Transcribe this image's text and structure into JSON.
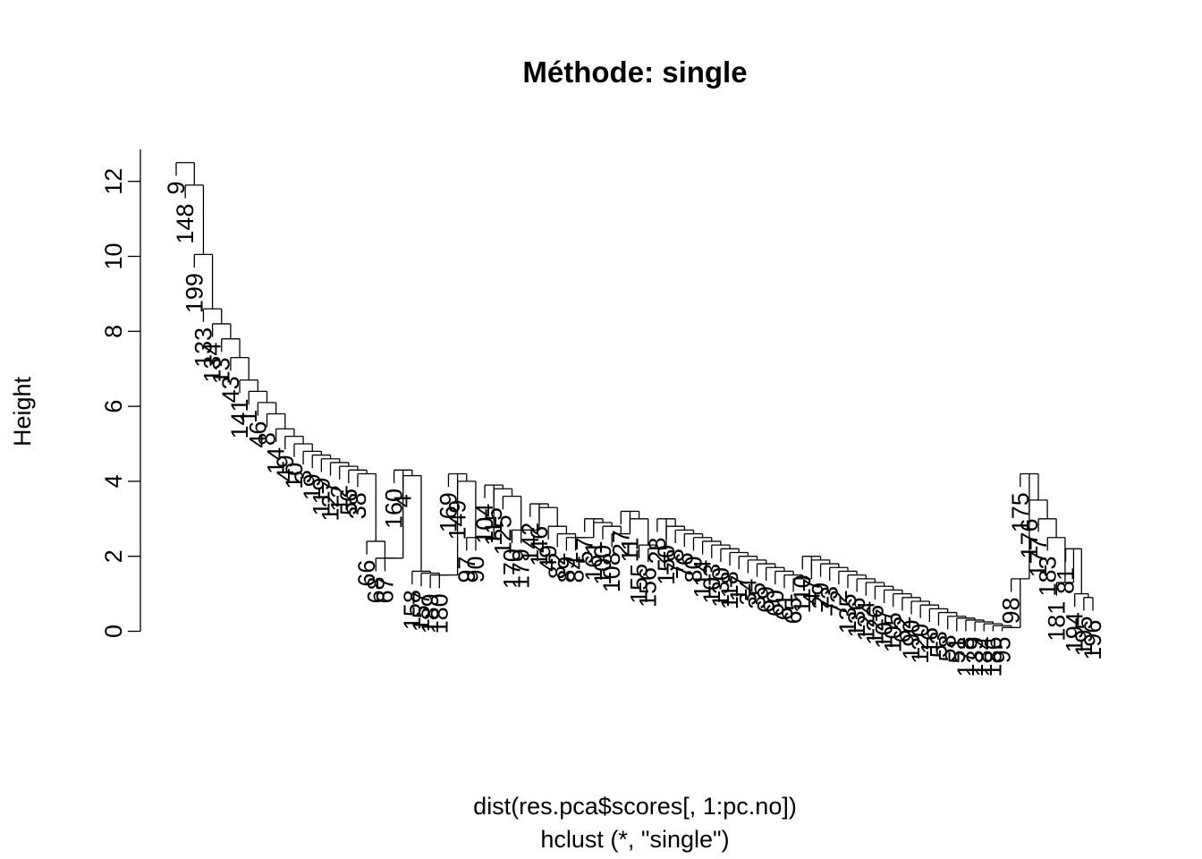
{
  "chart_data": {
    "type": "dendrogram",
    "title": "Méthode: single",
    "ylabel": "Height",
    "xlabel": "dist(res.pca$scores[, 1:pc.no])",
    "sub": "hclust (*, \"single\")",
    "yticks": [
      0,
      2,
      4,
      6,
      8,
      10,
      12
    ],
    "ylim": [
      0,
      12.5
    ],
    "hang": 0.1,
    "leaves": [
      {
        "label": "9",
        "h": 12.5
      },
      {
        "label": "148",
        "h": 11.9
      },
      {
        "label": "199",
        "h": 10.05
      },
      {
        "label": "133",
        "h": 8.6
      },
      {
        "label": "134",
        "h": 8.2
      },
      {
        "label": "13",
        "h": 7.8
      },
      {
        "label": "43",
        "h": 7.3
      },
      {
        "label": "141",
        "h": 6.7
      },
      {
        "label": "1",
        "h": 6.4
      },
      {
        "label": "46",
        "h": 6.1
      },
      {
        "label": "8",
        "h": 5.8
      },
      {
        "label": "14",
        "h": 5.4
      },
      {
        "label": "49",
        "h": 5.2
      },
      {
        "label": "10",
        "h": 5.0
      },
      {
        "label": "3",
        "h": 4.8
      },
      {
        "label": "19",
        "h": 4.7
      },
      {
        "label": "119",
        "h": 4.6
      },
      {
        "label": "127",
        "h": 4.5
      },
      {
        "label": "12",
        "h": 4.4
      },
      {
        "label": "56",
        "h": 4.3
      },
      {
        "label": "38",
        "h": 4.2
      },
      {
        "label": "66",
        "h": 2.4
      },
      {
        "label": "68",
        "h": 1.95
      },
      {
        "label": "67",
        "h": 1.95
      },
      {
        "label": "160",
        "h": 4.3
      },
      {
        "label": "4",
        "h": 4.15
      },
      {
        "label": "158",
        "h": 1.6
      },
      {
        "label": "157",
        "h": 1.55
      },
      {
        "label": "189",
        "h": 1.5
      },
      {
        "label": "180",
        "h": 1.5
      },
      {
        "label": "169",
        "h": 4.2
      },
      {
        "label": "149",
        "h": 4.0
      },
      {
        "label": "97",
        "h": 2.5
      },
      {
        "label": "90",
        "h": 2.5
      },
      {
        "label": "104",
        "h": 3.9
      },
      {
        "label": "115",
        "h": 3.8
      },
      {
        "label": "125",
        "h": 3.6
      },
      {
        "label": "170",
        "h": 2.7
      },
      {
        "label": "179",
        "h": 2.7
      },
      {
        "label": "142",
        "h": 3.4
      },
      {
        "label": "146",
        "h": 3.3
      },
      {
        "label": "49",
        "h": 2.8
      },
      {
        "label": "82",
        "h": 2.6
      },
      {
        "label": "89",
        "h": 2.5
      },
      {
        "label": "84",
        "h": 2.5
      },
      {
        "label": "57",
        "h": 3.0
      },
      {
        "label": "161",
        "h": 2.9
      },
      {
        "label": "100",
        "h": 2.8
      },
      {
        "label": "108",
        "h": 2.6
      },
      {
        "label": "27",
        "h": 3.2
      },
      {
        "label": "11",
        "h": 3.0
      },
      {
        "label": "155",
        "h": 2.3
      },
      {
        "label": "156",
        "h": 2.2
      },
      {
        "label": "28",
        "h": 3.0
      },
      {
        "label": "150",
        "h": 2.8
      },
      {
        "label": "78",
        "h": 2.7
      },
      {
        "label": "76",
        "h": 2.6
      },
      {
        "label": "80",
        "h": 2.5
      },
      {
        "label": "114",
        "h": 2.4
      },
      {
        "label": "103",
        "h": 2.3
      },
      {
        "label": "130",
        "h": 2.2
      },
      {
        "label": "118",
        "h": 2.1
      },
      {
        "label": "17",
        "h": 2.0
      },
      {
        "label": "34",
        "h": 1.9
      },
      {
        "label": "35",
        "h": 1.8
      },
      {
        "label": "69",
        "h": 1.7
      },
      {
        "label": "60",
        "h": 1.6
      },
      {
        "label": "61",
        "h": 1.5
      },
      {
        "label": "65",
        "h": 1.4
      },
      {
        "label": "110",
        "h": 2.0
      },
      {
        "label": "47",
        "h": 1.9
      },
      {
        "label": "29",
        "h": 1.8
      },
      {
        "label": "73",
        "h": 1.7
      },
      {
        "label": "72",
        "h": 1.6
      },
      {
        "label": "135",
        "h": 1.5
      },
      {
        "label": "136",
        "h": 1.4
      },
      {
        "label": "124",
        "h": 1.3
      },
      {
        "label": "126",
        "h": 1.2
      },
      {
        "label": "107",
        "h": 1.1
      },
      {
        "label": "105",
        "h": 1.0
      },
      {
        "label": "62",
        "h": 0.9
      },
      {
        "label": "190",
        "h": 0.8
      },
      {
        "label": "120",
        "h": 0.7
      },
      {
        "label": "16",
        "h": 0.6
      },
      {
        "label": "53",
        "h": 0.5
      },
      {
        "label": "58",
        "h": 0.4
      },
      {
        "label": "51",
        "h": 0.35
      },
      {
        "label": "178",
        "h": 0.3
      },
      {
        "label": "139",
        "h": 0.25
      },
      {
        "label": "184",
        "h": 0.2
      },
      {
        "label": "186",
        "h": 0.15
      },
      {
        "label": "95",
        "h": 0.1
      },
      {
        "label": "98",
        "h": 1.4
      },
      {
        "label": "175",
        "h": 4.2
      },
      {
        "label": "176",
        "h": 3.5
      },
      {
        "label": "177",
        "h": 3.0
      },
      {
        "label": "183",
        "h": 2.5
      },
      {
        "label": "181",
        "h": 1.3
      },
      {
        "label": "81",
        "h": 2.2
      },
      {
        "label": "194",
        "h": 1.0
      },
      {
        "label": "195",
        "h": 0.9
      },
      {
        "label": "196",
        "h": 0.8
      }
    ]
  }
}
